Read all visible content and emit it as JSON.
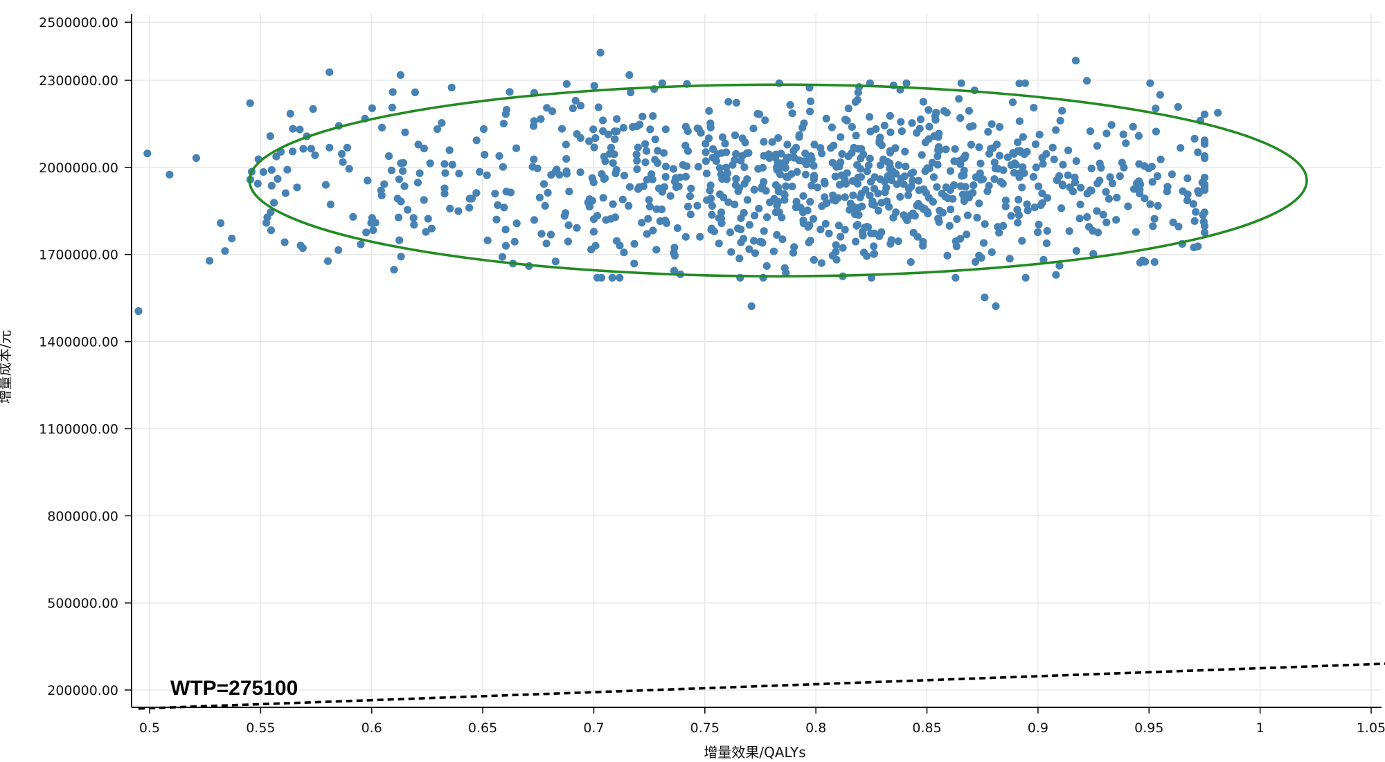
{
  "chart_data": {
    "type": "scatter",
    "title": "",
    "xlabel": "增量效果/QALYs",
    "ylabel": "增量成本/元",
    "xlim": [
      0.495,
      1.055
    ],
    "ylim": [
      140000,
      2540000
    ],
    "x_ticks": [
      "0.5",
      "0.55",
      "0.6",
      "0.65",
      "0.7",
      "0.75",
      "0.8",
      "0.85",
      "0.9",
      "0.95",
      "1",
      "1.05"
    ],
    "x_tick_values": [
      0.5,
      0.55,
      0.6,
      0.65,
      0.7,
      0.75,
      0.8,
      0.85,
      0.9,
      0.95,
      1.0,
      1.05
    ],
    "y_ticks": [
      "200000.00",
      "500000.00",
      "800000.00",
      "1100000.00",
      "1400000.00",
      "1700000.00",
      "2000000.00",
      "2300000.00",
      "2500000.00"
    ],
    "y_tick_values": [
      200000,
      500000,
      800000,
      1100000,
      1400000,
      1700000,
      2000000,
      2300000,
      2500000
    ],
    "grid": true,
    "point_color": "#4682B4",
    "ellipse": {
      "color": "#228B22",
      "center": [
        0.783,
        1955000
      ],
      "semi_x": 0.238,
      "semi_y": 330000
    },
    "wtp_line": {
      "label": "WTP=275100",
      "slope": 275100,
      "style": "dashed",
      "color": "#000000"
    },
    "outliers": [
      [
        0.495,
        1505000
      ],
      [
        0.499,
        2048000
      ],
      [
        0.509,
        1975000
      ],
      [
        0.521,
        2032000
      ],
      [
        0.527,
        1678000
      ],
      [
        0.532,
        1808000
      ],
      [
        0.534,
        1712000
      ],
      [
        0.537,
        1755000
      ],
      [
        0.581,
        2328000
      ],
      [
        0.613,
        2318000
      ],
      [
        0.703,
        2395000
      ],
      [
        0.917,
        2368000
      ],
      [
        0.922,
        2298000
      ],
      [
        0.981,
        2188000
      ],
      [
        0.771,
        1522000
      ],
      [
        0.881,
        1522000
      ],
      [
        0.876,
        1552000
      ],
      [
        0.546,
        1985000
      ],
      [
        0.549,
        2028000
      ],
      [
        0.553,
        1828000
      ],
      [
        0.556,
        1878000
      ],
      [
        0.562,
        1992000
      ],
      [
        0.569,
        1722000
      ],
      [
        0.585,
        1715000
      ],
      [
        0.581,
        2068000
      ],
      [
        0.589,
        2068000
      ],
      [
        0.597,
        2168000
      ],
      [
        0.636,
        2275000
      ],
      [
        0.716,
        2318000
      ],
      [
        0.955,
        2250000
      ],
      [
        0.972,
        1728000
      ],
      [
        0.975,
        1798000
      ],
      [
        0.974,
        1948000
      ],
      [
        0.972,
        2052000
      ],
      [
        0.946,
        1672000
      ]
    ],
    "cloud": {
      "n": 950,
      "seed": 7,
      "x_range": [
        0.545,
        0.975
      ],
      "y_center": 1955000,
      "y_spread": 148000
    }
  }
}
